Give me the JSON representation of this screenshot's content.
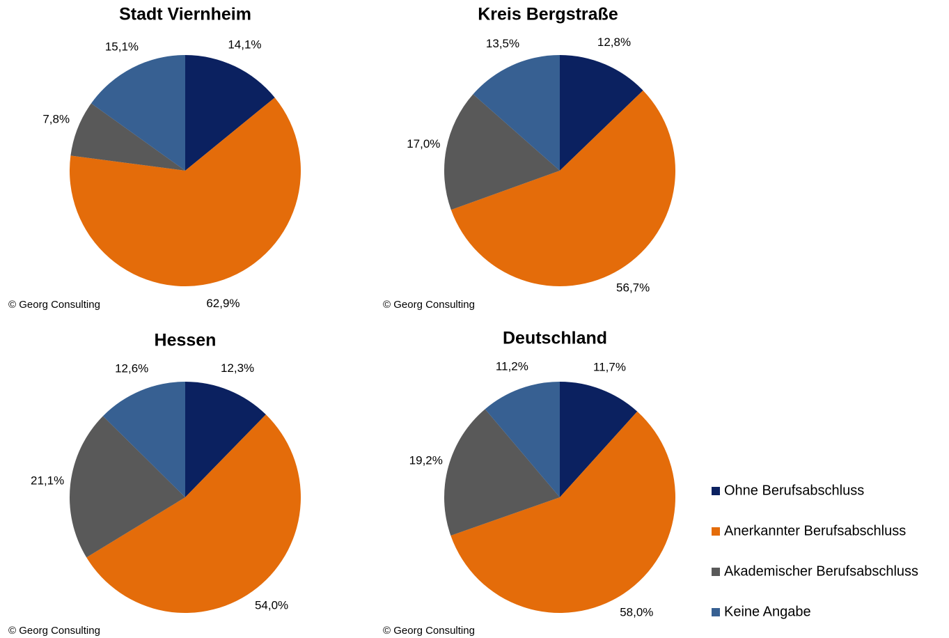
{
  "chart_data": [
    {
      "type": "pie",
      "title": "Stadt Viernheim",
      "source": "© Georg Consulting",
      "categories": [
        "Ohne Berufsabschluss",
        "Anerkannter Berufsabschluss",
        "Akademischer Berufsabschluss",
        "Keine Angabe"
      ],
      "values": [
        14.1,
        62.9,
        7.8,
        15.1
      ],
      "value_labels": [
        "14,1%",
        "62,9%",
        "7,8%",
        "15,1%"
      ],
      "colors": [
        "#0b2160",
        "#e46c0a",
        "#595959",
        "#376092"
      ]
    },
    {
      "type": "pie",
      "title": "Kreis Bergstraße",
      "source": "© Georg Consulting",
      "categories": [
        "Ohne Berufsabschluss",
        "Anerkannter Berufsabschluss",
        "Akademischer Berufsabschluss",
        "Keine Angabe"
      ],
      "values": [
        12.8,
        56.7,
        17.0,
        13.5
      ],
      "value_labels": [
        "12,8%",
        "56,7%",
        "17,0%",
        "13,5%"
      ],
      "colors": [
        "#0b2160",
        "#e46c0a",
        "#595959",
        "#376092"
      ]
    },
    {
      "type": "pie",
      "title": "Hessen",
      "source": "© Georg Consulting",
      "categories": [
        "Ohne Berufsabschluss",
        "Anerkannter Berufsabschluss",
        "Akademischer Berufsabschluss",
        "Keine Angabe"
      ],
      "values": [
        12.3,
        54.0,
        21.1,
        12.6
      ],
      "value_labels": [
        "12,3%",
        "54,0%",
        "21,1%",
        "12,6%"
      ],
      "colors": [
        "#0b2160",
        "#e46c0a",
        "#595959",
        "#376092"
      ]
    },
    {
      "type": "pie",
      "title": "Deutschland",
      "source": "© Georg Consulting",
      "categories": [
        "Ohne Berufsabschluss",
        "Anerkannter Berufsabschluss",
        "Akademischer Berufsabschluss",
        "Keine Angabe"
      ],
      "values": [
        11.7,
        58.0,
        19.2,
        11.2
      ],
      "value_labels": [
        "11,7%",
        "58,0%",
        "19,2%",
        "11,2%"
      ],
      "colors": [
        "#0b2160",
        "#e46c0a",
        "#595959",
        "#376092"
      ],
      "legend": "right"
    }
  ]
}
